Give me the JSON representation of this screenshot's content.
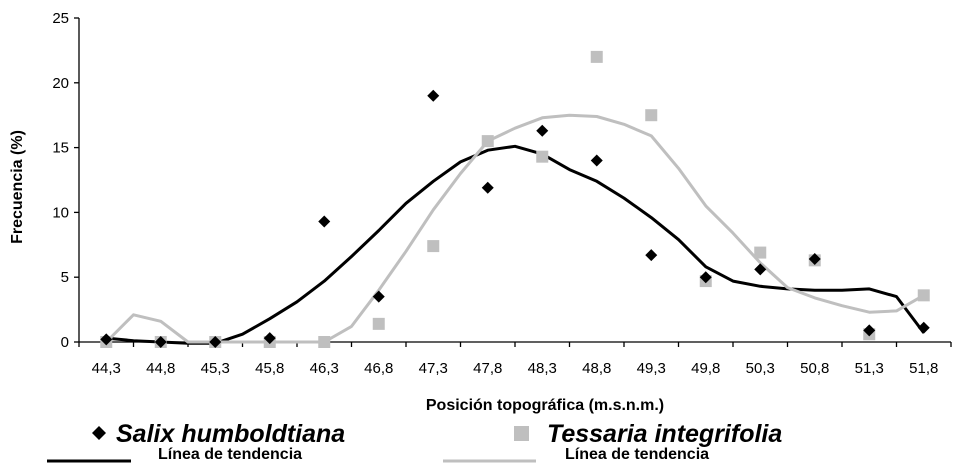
{
  "chart_data": {
    "type": "scatter",
    "xlabel": "Posición topográfica (m.s.n.m.)",
    "ylabel": "Frecuencia  (%)",
    "ylim": [
      0,
      25
    ],
    "yticks": [
      "0",
      "5",
      "10",
      "15",
      "20",
      "25"
    ],
    "categories": [
      "44,3",
      "44,8",
      "45,3",
      "45,8",
      "46,3",
      "46,8",
      "47,3",
      "47,8",
      "48,3",
      "48,8",
      "49,3",
      "49,8",
      "50,3",
      "50,8",
      "51,3",
      "51,8"
    ],
    "grid": false,
    "legend_position": "bottom",
    "series": [
      {
        "name": "Salix humboldtiana",
        "marker": "diamond",
        "color": "#000000",
        "values": [
          0.2,
          0,
          0,
          0.3,
          9.3,
          3.5,
          19,
          11.9,
          16.3,
          14,
          6.7,
          5,
          5.6,
          6.4,
          0.9,
          1.1
        ]
      },
      {
        "name": "Tessaria integrifolia",
        "marker": "square",
        "color": "#bfbfbf",
        "values": [
          0,
          0,
          0,
          0,
          0,
          1.4,
          7.4,
          15.5,
          14.3,
          22,
          17.5,
          4.7,
          6.9,
          6.3,
          0.6,
          3.6
        ]
      }
    ],
    "trendlines": [
      {
        "name": "Línea de tendencia",
        "color": "#000000",
        "x": [
          44.3,
          44.55,
          44.8,
          45.05,
          45.3,
          45.55,
          45.8,
          46.05,
          46.3,
          46.55,
          46.8,
          47.05,
          47.3,
          47.55,
          47.8,
          48.05,
          48.3,
          48.55,
          48.8,
          49.05,
          49.3,
          49.55,
          49.8,
          50.05,
          50.3,
          50.55,
          50.8,
          51.05,
          51.3,
          51.55,
          51.8
        ],
        "y": [
          0.3,
          0.1,
          0,
          -0.1,
          -0.1,
          0.6,
          1.8,
          3.1,
          4.7,
          6.6,
          8.6,
          10.7,
          12.4,
          13.9,
          14.8,
          15.1,
          14.5,
          13.3,
          12.4,
          11.1,
          9.6,
          7.9,
          5.8,
          4.7,
          4.3,
          4.1,
          4,
          4,
          4.1,
          3.5,
          0.7
        ]
      },
      {
        "name": "Línea de tendencia",
        "color": "#bfbfbf",
        "x": [
          44.3,
          44.55,
          44.8,
          45.05,
          45.3,
          45.55,
          45.8,
          46.05,
          46.3,
          46.55,
          46.8,
          47.05,
          47.3,
          47.55,
          47.8,
          48.05,
          48.3,
          48.55,
          48.8,
          49.05,
          49.3,
          49.55,
          49.8,
          50.05,
          50.3,
          50.55,
          50.8,
          51.05,
          51.3,
          51.55,
          51.8
        ],
        "y": [
          0,
          2.1,
          1.6,
          0,
          0,
          0,
          0,
          0,
          0,
          1.2,
          4,
          7,
          10.2,
          13,
          15.5,
          16.5,
          17.3,
          17.5,
          17.4,
          16.8,
          15.9,
          13.4,
          10.5,
          8.4,
          6.1,
          4.2,
          3.4,
          2.8,
          2.3,
          2.4,
          3.6
        ]
      }
    ]
  }
}
